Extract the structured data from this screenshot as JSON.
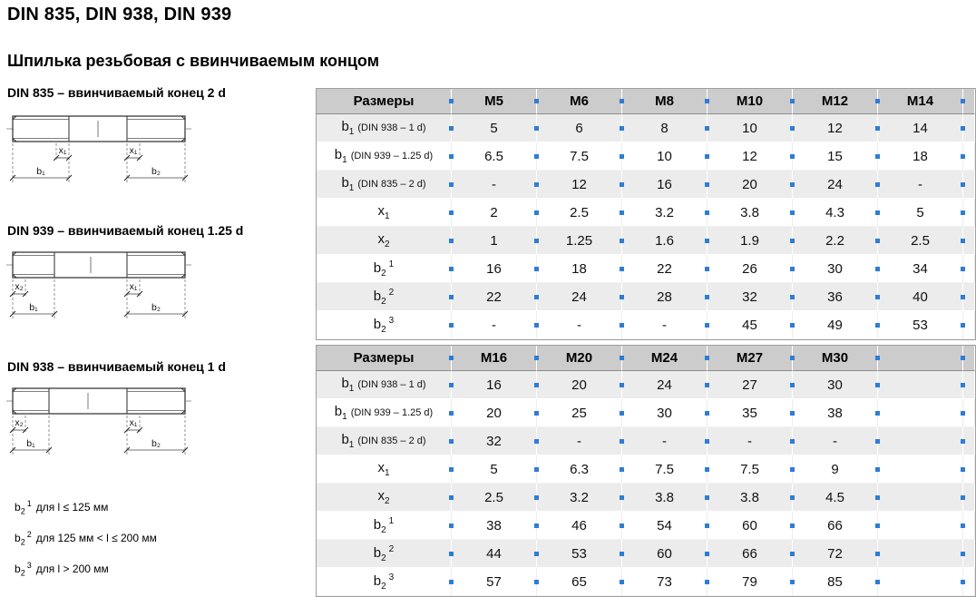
{
  "page": {
    "title": "DIN 835, DIN 938, DIN 939",
    "subtitle": "Шпилька резьбовая с ввинчиваемым концом"
  },
  "colors": {
    "marker_blue": "#2e7cd6",
    "header_gray": "#cccccc",
    "row_stripe_gray": "#ececec"
  },
  "diagrams": [
    {
      "caption": "DIN 835 – ввинчиваемый конец 2 d",
      "dims": {
        "left_top": "x₁",
        "right_top": "x₁",
        "left_bottom": "b₁",
        "right_bottom": "b₂"
      }
    },
    {
      "caption": "DIN 939 – ввинчиваемый конец 1.25 d",
      "dims": {
        "left_top": "x₂",
        "right_top": "x₁",
        "left_bottom": "b₁",
        "right_bottom": "b₂"
      }
    },
    {
      "caption": "DIN 938 – ввинчиваемый конец 1 d",
      "dims": {
        "left_top": "x₂",
        "right_top": "x₁",
        "left_bottom": "b₁",
        "right_bottom": "b₂"
      }
    }
  ],
  "footnotes": [
    {
      "base": "b",
      "sub": "2",
      "sup": "1",
      "text": "для l ≤ 125 мм"
    },
    {
      "base": "b",
      "sub": "2",
      "sup": "2",
      "text": "для 125 мм < l ≤ 200 мм"
    },
    {
      "base": "b",
      "sub": "2",
      "sup": "3",
      "text": "для l > 200 мм"
    }
  ],
  "tables": [
    {
      "corner": "Размеры",
      "columns": [
        "M5",
        "M6",
        "M8",
        "M10",
        "M12",
        "M14"
      ],
      "rows": [
        {
          "label": {
            "base": "b",
            "sub": "1",
            "note": "(DIN 938 – 1 d)"
          },
          "values": [
            "5",
            "6",
            "8",
            "10",
            "12",
            "14"
          ]
        },
        {
          "label": {
            "base": "b",
            "sub": "1",
            "note": "(DIN 939 – 1.25 d)"
          },
          "values": [
            "6.5",
            "7.5",
            "10",
            "12",
            "15",
            "18"
          ]
        },
        {
          "label": {
            "base": "b",
            "sub": "1",
            "note": "(DIN 835 – 2 d)"
          },
          "values": [
            "-",
            "12",
            "16",
            "20",
            "24",
            "-"
          ]
        },
        {
          "label": {
            "base": "x",
            "sub": "1"
          },
          "values": [
            "2",
            "2.5",
            "3.2",
            "3.8",
            "4.3",
            "5"
          ]
        },
        {
          "label": {
            "base": "x",
            "sub": "2"
          },
          "values": [
            "1",
            "1.25",
            "1.6",
            "1.9",
            "2.2",
            "2.5"
          ]
        },
        {
          "label": {
            "base": "b",
            "sub": "2",
            "sup": "1"
          },
          "values": [
            "16",
            "18",
            "22",
            "26",
            "30",
            "34"
          ]
        },
        {
          "label": {
            "base": "b",
            "sub": "2",
            "sup": "2"
          },
          "values": [
            "22",
            "24",
            "28",
            "32",
            "36",
            "40"
          ]
        },
        {
          "label": {
            "base": "b",
            "sub": "2",
            "sup": "3"
          },
          "values": [
            "-",
            "-",
            "-",
            "45",
            "49",
            "53"
          ]
        }
      ]
    },
    {
      "corner": "Размеры",
      "columns": [
        "M16",
        "M20",
        "M24",
        "M27",
        "M30",
        ""
      ],
      "rows": [
        {
          "label": {
            "base": "b",
            "sub": "1",
            "note": "(DIN 938 – 1 d)"
          },
          "values": [
            "16",
            "20",
            "24",
            "27",
            "30",
            ""
          ]
        },
        {
          "label": {
            "base": "b",
            "sub": "1",
            "note": "(DIN 939 – 1.25 d)"
          },
          "values": [
            "20",
            "25",
            "30",
            "35",
            "38",
            ""
          ]
        },
        {
          "label": {
            "base": "b",
            "sub": "1",
            "note": "(DIN 835 – 2 d)"
          },
          "values": [
            "32",
            "-",
            "-",
            "-",
            "-",
            ""
          ]
        },
        {
          "label": {
            "base": "x",
            "sub": "1"
          },
          "values": [
            "5",
            "6.3",
            "7.5",
            "7.5",
            "9",
            ""
          ]
        },
        {
          "label": {
            "base": "x",
            "sub": "2"
          },
          "values": [
            "2.5",
            "3.2",
            "3.8",
            "3.8",
            "4.5",
            ""
          ]
        },
        {
          "label": {
            "base": "b",
            "sub": "2",
            "sup": "1"
          },
          "values": [
            "38",
            "46",
            "54",
            "60",
            "66",
            ""
          ]
        },
        {
          "label": {
            "base": "b",
            "sub": "2",
            "sup": "2"
          },
          "values": [
            "44",
            "53",
            "60",
            "66",
            "72",
            ""
          ]
        },
        {
          "label": {
            "base": "b",
            "sub": "2",
            "sup": "3"
          },
          "values": [
            "57",
            "65",
            "73",
            "79",
            "85",
            ""
          ]
        }
      ]
    }
  ]
}
